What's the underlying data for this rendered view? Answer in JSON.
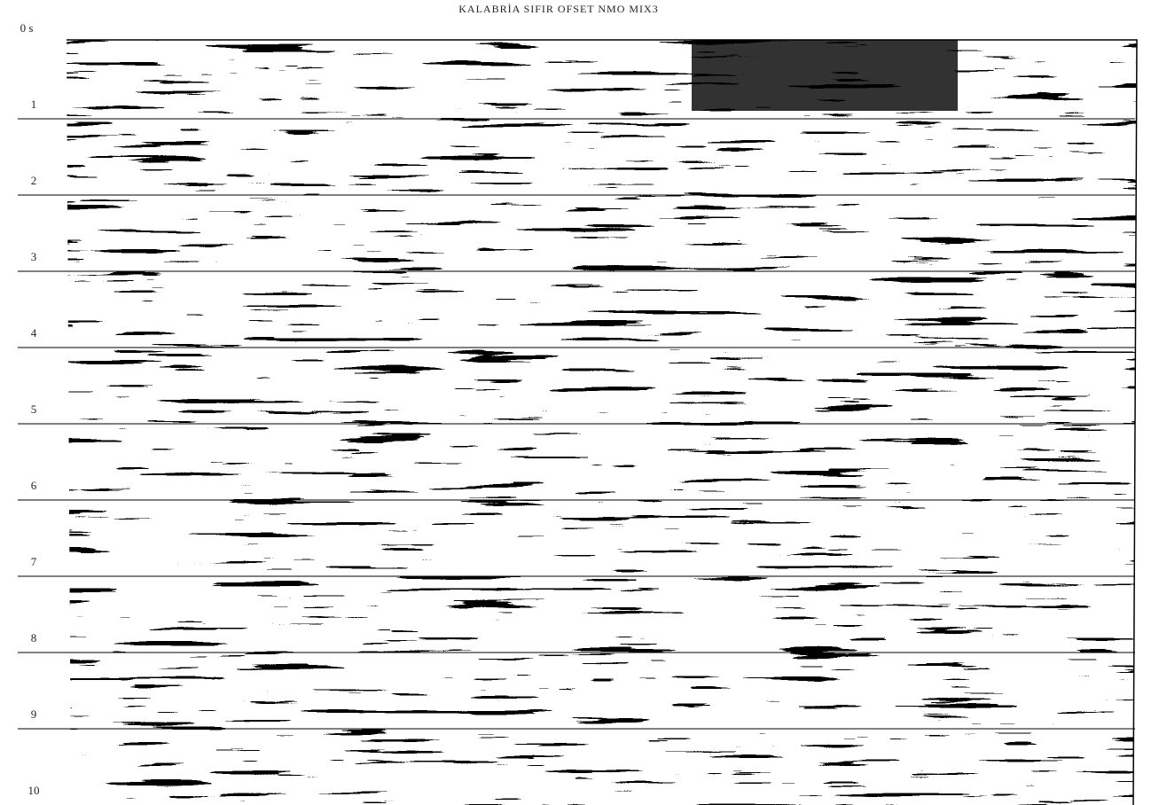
{
  "title": "KALABRİA SIFIR OFSET NMO MIX3",
  "time_axis": {
    "labels": [
      "0 s",
      "1",
      "2",
      "3",
      "4",
      "5",
      "6",
      "7",
      "8",
      "9",
      "10"
    ]
  }
}
